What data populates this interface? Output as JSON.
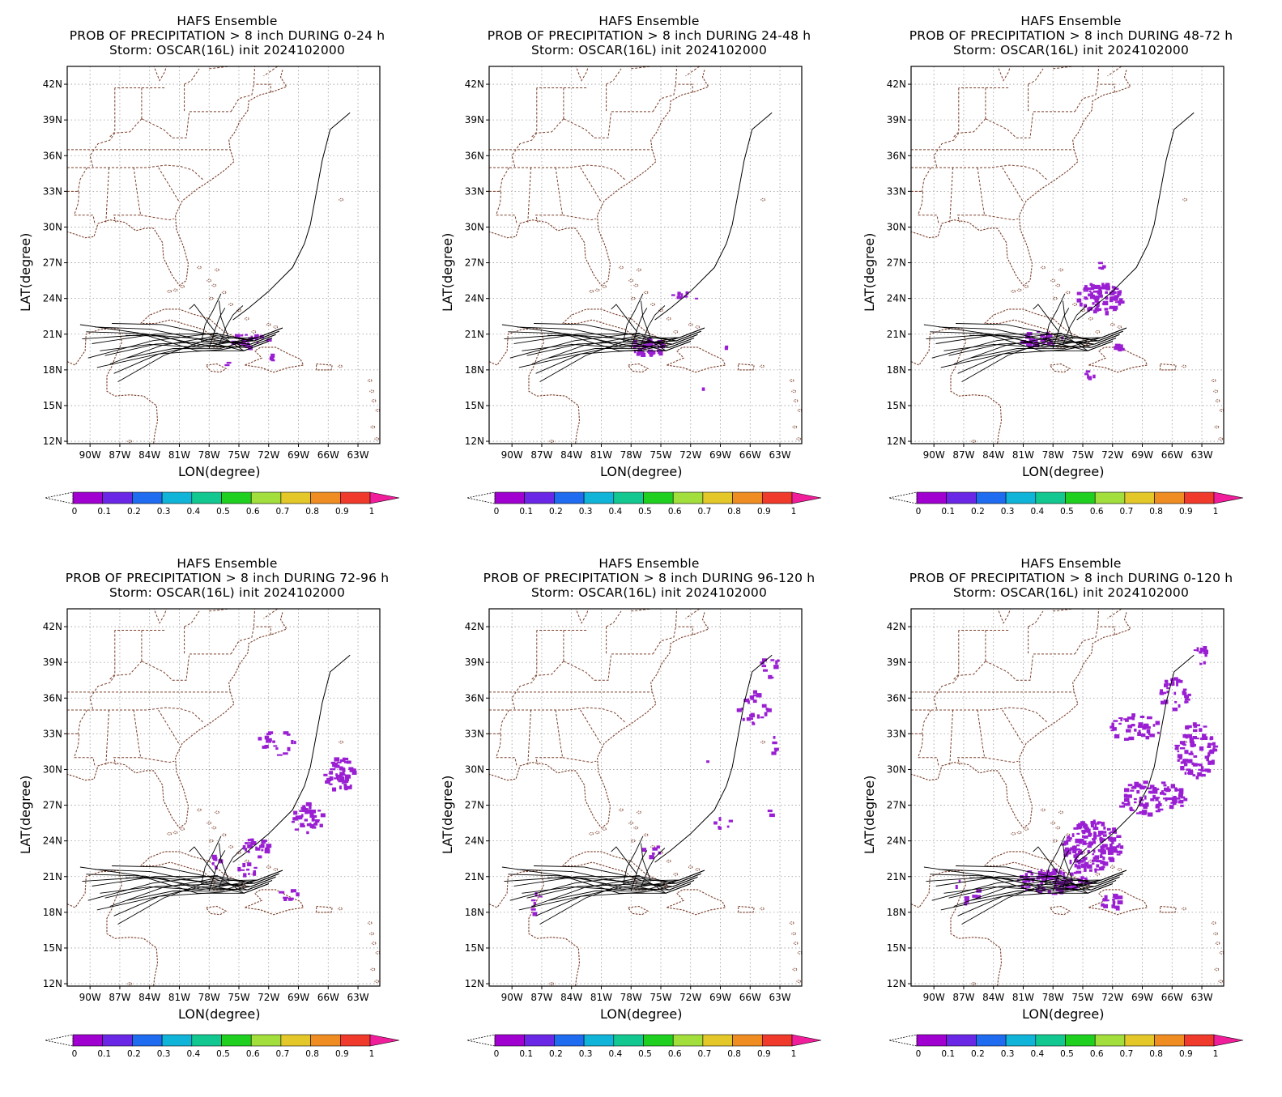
{
  "colors": {
    "track": "#000000",
    "coast": "#7b3f2a",
    "grid": "#9a9a9a",
    "precip": "#9a1fd2"
  },
  "common": {
    "ensemble": "HAFS Ensemble",
    "storm": "Storm: OSCAR(16L) init 2024102000",
    "xlabel": "LON(degree)",
    "ylabel": "LAT(degree)"
  },
  "lat_ticks": [
    "42N",
    "39N",
    "36N",
    "33N",
    "30N",
    "27N",
    "24N",
    "21N",
    "18N",
    "15N",
    "12N"
  ],
  "lon_ticks": [
    "90W",
    "87W",
    "84W",
    "81W",
    "78W",
    "75W",
    "72W",
    "69W",
    "66W",
    "63W"
  ],
  "colorbar": {
    "labels": [
      "0",
      "0.1",
      "0.2",
      "0.3",
      "0.4",
      "0.5",
      "0.6",
      "0.7",
      "0.8",
      "0.9",
      "1"
    ],
    "colors": [
      "#a000d0",
      "#6a28e6",
      "#1f6cf0",
      "#10b4d8",
      "#12c890",
      "#20d020",
      "#a2de3c",
      "#e4c82a",
      "#ef8c22",
      "#ef3a2c"
    ],
    "over_color": "#f01e9a"
  },
  "panels": [
    {
      "title": "PROB OF PRECIPITATION > 8 inch DURING  0-24 h"
    },
    {
      "title": "PROB OF PRECIPITATION > 8 inch DURING 24-48 h"
    },
    {
      "title": "PROB OF PRECIPITATION > 8 inch DURING 48-72 h"
    },
    {
      "title": "PROB OF PRECIPITATION > 8 inch DURING 72-96 h"
    },
    {
      "title": "PROB OF PRECIPITATION > 8 inch DURING 96-120 h"
    },
    {
      "title": "PROB OF PRECIPITATION > 8 inch DURING 0-120 h"
    }
  ]
}
